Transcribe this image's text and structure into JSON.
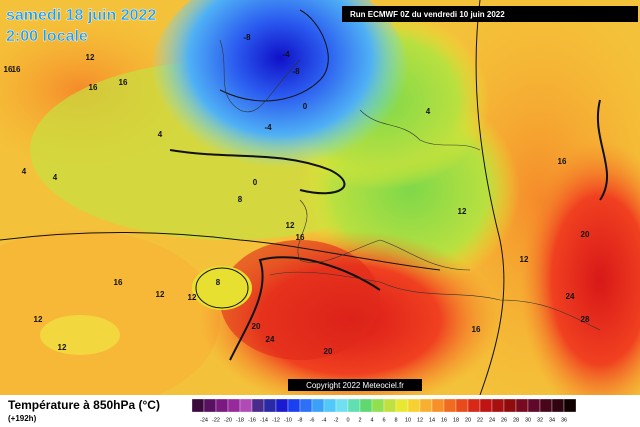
{
  "header": {
    "date": "samedi 18 juin 2022",
    "time": "2:00 locale",
    "run": "Run ECMWF 0Z du vendredi 10 juin 2022"
  },
  "copyright": "Copyright 2022 Meteociel.fr",
  "legend": {
    "title": "Température à 850hPa (°C)",
    "lead": "(+192h)",
    "labels": [
      -24,
      -22,
      -20,
      -18,
      -16,
      -14,
      -12,
      -10,
      -8,
      -6,
      -4,
      -2,
      0,
      2,
      4,
      6,
      8,
      10,
      12,
      14,
      16,
      18,
      20,
      22,
      24,
      26,
      28,
      30,
      32,
      34,
      36
    ]
  },
  "contour_labels": [
    -8,
    -8,
    -4,
    16,
    16,
    12,
    16,
    16,
    4,
    4,
    4,
    0,
    -4,
    0,
    8,
    12,
    16,
    12,
    16,
    20,
    24,
    28,
    12,
    16,
    16,
    12,
    12,
    8,
    20,
    24,
    20,
    12,
    12,
    4
  ]
}
